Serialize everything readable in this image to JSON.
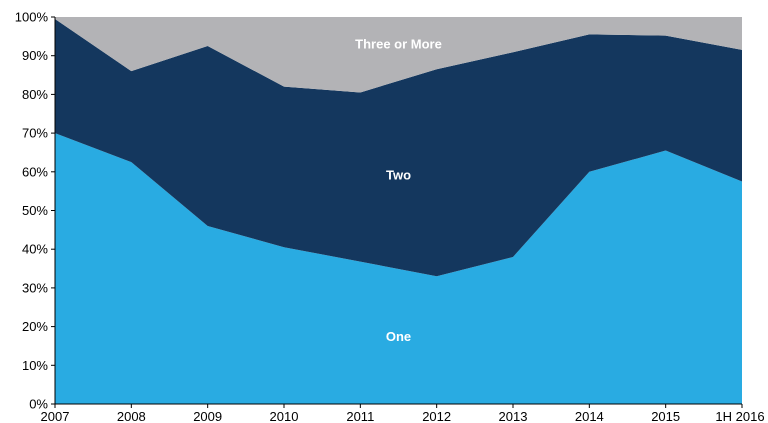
{
  "chart_data": {
    "type": "area",
    "stacked": true,
    "normalized": true,
    "categories": [
      "2007",
      "2008",
      "2009",
      "2010",
      "2011",
      "2012",
      "2013",
      "2014",
      "2015",
      "1H 2016"
    ],
    "series": [
      {
        "name": "One",
        "color": "#29abe2",
        "values": [
          70,
          62.5,
          46,
          40.5,
          36.8,
          33,
          38,
          60,
          65.5,
          57.5
        ]
      },
      {
        "name": "Two",
        "color": "#14375e",
        "values": [
          29.5,
          23.5,
          46.5,
          41.5,
          43.7,
          53.5,
          52.9,
          35.5,
          29.7,
          34
        ]
      },
      {
        "name": "Three or More",
        "color": "#b3b3b6",
        "values": [
          0.5,
          14,
          7.5,
          18,
          19.5,
          13.5,
          9.1,
          4.5,
          4.8,
          8.5
        ]
      }
    ],
    "ylim": [
      0,
      100
    ],
    "yticks": [
      "0%",
      "10%",
      "20%",
      "30%",
      "40%",
      "50%",
      "60%",
      "70%",
      "80%",
      "90%",
      "100%"
    ],
    "grid": false,
    "legend": "none"
  }
}
